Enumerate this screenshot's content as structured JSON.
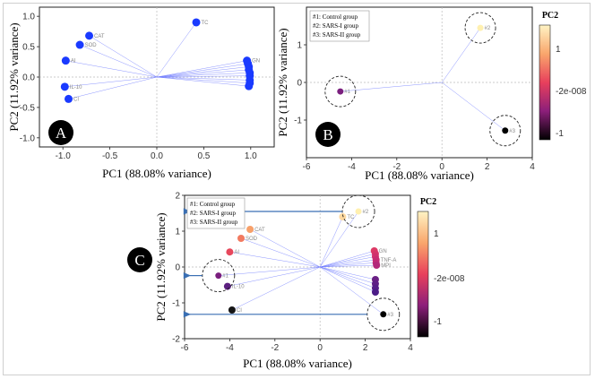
{
  "chart_data": [
    {
      "panel": "A",
      "type": "scatter",
      "subtype": "biplot-loadings",
      "xlabel": "PC1 (88.08% variance)",
      "ylabel": "PC2 (11.92% variance)",
      "xlim": [
        -1.25,
        1.25
      ],
      "ylim": [
        -1.15,
        1.15
      ],
      "xticks": [
        "-1.0",
        "-0.5",
        "0.0",
        "0.5",
        "1.0"
      ],
      "yticks": [
        "-1.0",
        "-0.5",
        "0.0",
        "0.5",
        "1.0"
      ],
      "point_color": "#1a3aff",
      "points": [
        {
          "label": "TC",
          "x": 0.42,
          "y": 0.9
        },
        {
          "label": "CAT",
          "x": -0.72,
          "y": 0.68
        },
        {
          "label": "SOD",
          "x": -0.82,
          "y": 0.53
        },
        {
          "label": "AI",
          "x": -0.97,
          "y": 0.27
        },
        {
          "label": "IL-10",
          "x": -0.98,
          "y": -0.16
        },
        {
          "label": "CI",
          "x": -0.94,
          "y": -0.36
        },
        {
          "label": "GN",
          "x": 0.96,
          "y": 0.27
        },
        {
          "label": "",
          "x": 0.97,
          "y": 0.22
        },
        {
          "label": "",
          "x": 0.98,
          "y": 0.17
        },
        {
          "label": "",
          "x": 0.98,
          "y": 0.12
        },
        {
          "label": "",
          "x": 0.99,
          "y": 0.07
        },
        {
          "label": "",
          "x": 0.99,
          "y": 0.02
        },
        {
          "label": "",
          "x": 0.99,
          "y": -0.05
        },
        {
          "label": "",
          "x": 0.99,
          "y": -0.1
        },
        {
          "label": "",
          "x": 0.98,
          "y": -0.15
        }
      ],
      "panel_badge": "A"
    },
    {
      "panel": "B",
      "type": "scatter",
      "subtype": "biplot-scores",
      "xlabel": "PC1 (88.08% variance)",
      "ylabel": "PC2 (11.92% variance)",
      "xlim": [
        -6,
        4
      ],
      "ylim": [
        -2,
        2
      ],
      "xticks": [
        "-6",
        "-4",
        "-2",
        "0",
        "2",
        "4"
      ],
      "yticks": [
        "-1",
        "0",
        "1"
      ],
      "legend": [
        "#1: Control group",
        "#2: SARS-I group",
        "#3: SARS-II group"
      ],
      "legend_position": "top-left",
      "points": [
        {
          "label": "#1",
          "x": -4.5,
          "y": -0.24,
          "color": "#7a1f7e"
        },
        {
          "label": "#2",
          "x": 1.7,
          "y": 1.45,
          "color": "#fff0b0"
        },
        {
          "label": "#3",
          "x": 2.8,
          "y": -1.28,
          "color": "#000000"
        }
      ],
      "colorbar": {
        "title": "PC2",
        "ticks": [
          "1",
          "-2e-008",
          "-1"
        ]
      },
      "panel_badge": "B"
    },
    {
      "panel": "C",
      "type": "scatter",
      "subtype": "biplot",
      "xlabel": "PC1 (88.08% variance)",
      "ylabel": "PC2 (11.92% variance)",
      "xlim": [
        -6,
        4
      ],
      "ylim": [
        -2,
        2
      ],
      "xticks": [
        "-6",
        "-4",
        "-2",
        "0",
        "2",
        "4"
      ],
      "yticks": [
        "-2",
        "-1",
        "0",
        "1",
        "2"
      ],
      "legend": [
        "#1: Control group",
        "#2: SARS-I group",
        "#3: SARS-II group"
      ],
      "legend_position": "top-left",
      "groups": [
        {
          "label": "#1",
          "x": -4.5,
          "y": -0.24,
          "color": "#7a1f7e"
        },
        {
          "label": "#2",
          "x": 1.7,
          "y": 1.55,
          "color": "#fff0b0"
        },
        {
          "label": "#3",
          "x": 2.8,
          "y": -1.32,
          "color": "#000000"
        }
      ],
      "variables": [
        {
          "label": "TC",
          "x": 1.0,
          "y": 1.4,
          "color": "#ffd9a0"
        },
        {
          "label": "CAT",
          "x": -3.1,
          "y": 1.05,
          "color": "#f7a06a"
        },
        {
          "label": "SOD",
          "x": -3.5,
          "y": 0.8,
          "color": "#f27a60"
        },
        {
          "label": "AI",
          "x": -4.0,
          "y": 0.42,
          "color": "#e7485c"
        },
        {
          "label": "IL-10",
          "x": -4.1,
          "y": -0.54,
          "color": "#5c2080"
        },
        {
          "label": "CI",
          "x": -3.9,
          "y": -1.2,
          "color": "#151515"
        },
        {
          "label": "GN",
          "x": 2.4,
          "y": 0.45,
          "color": "#dd3a66"
        },
        {
          "label": "",
          "x": 2.45,
          "y": 0.37,
          "color": "#d7356a"
        },
        {
          "label": "",
          "x": 2.45,
          "y": 0.29,
          "color": "#d0306e"
        },
        {
          "label": "TNF-A",
          "x": 2.48,
          "y": 0.2,
          "color": "#c82c72"
        },
        {
          "label": "",
          "x": 2.48,
          "y": 0.12,
          "color": "#c02a76"
        },
        {
          "label": "MPI",
          "x": 2.5,
          "y": 0.05,
          "color": "#b2287a"
        },
        {
          "label": "",
          "x": 2.45,
          "y": -0.35,
          "color": "#6a2085"
        },
        {
          "label": "",
          "x": 2.45,
          "y": -0.47,
          "color": "#601f86"
        },
        {
          "label": "",
          "x": 2.45,
          "y": -0.59,
          "color": "#561e88"
        },
        {
          "label": "",
          "x": 2.45,
          "y": -0.7,
          "color": "#4c1c88"
        }
      ],
      "colorbar": {
        "title": "PC2",
        "ticks": [
          "1",
          "-2e-008",
          "-1"
        ]
      },
      "panel_badge": "C"
    }
  ]
}
